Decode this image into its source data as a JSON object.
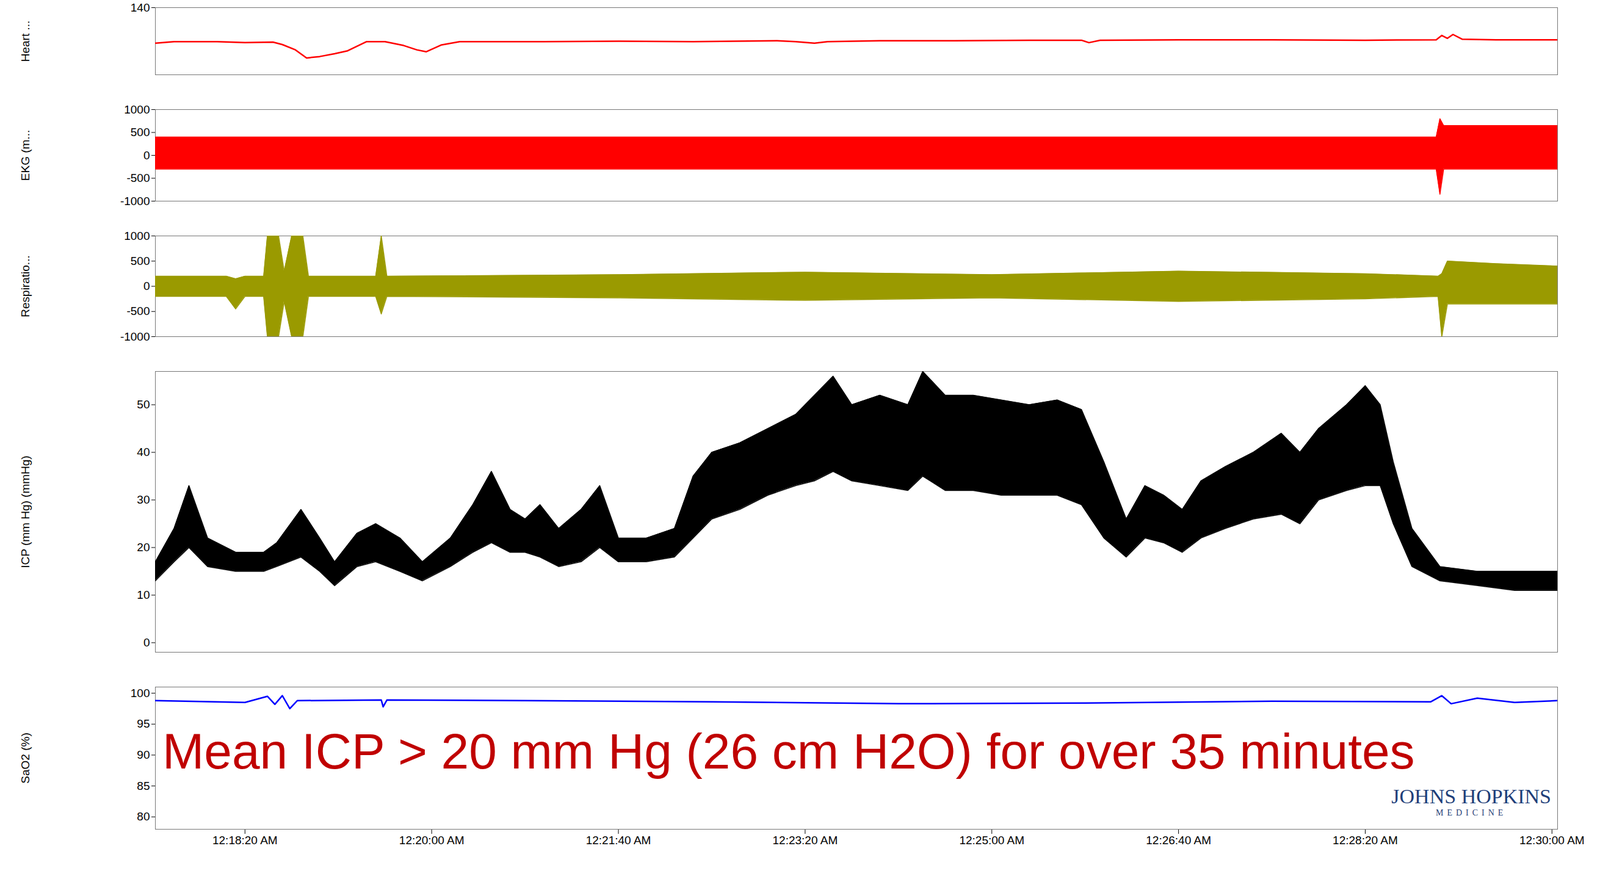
{
  "chart_data": [
    {
      "type": "line",
      "ylabel": "Heart ...",
      "color": "#ff0000",
      "tick_labels": "y",
      "xlim": [
        1052,
        1803
      ],
      "ylim": [
        0,
        140
      ],
      "yticks": [
        140
      ],
      "x": [
        1052,
        1062,
        1085,
        1100,
        1115,
        1120,
        1127,
        1133,
        1140,
        1148,
        1155,
        1165,
        1175,
        1185,
        1192,
        1197,
        1205,
        1215,
        1260,
        1300,
        1340,
        1385,
        1395,
        1405,
        1412,
        1440,
        1480,
        1520,
        1548,
        1552,
        1558,
        1600,
        1650,
        1700,
        1738,
        1741,
        1744,
        1747,
        1752,
        1770,
        1803
      ],
      "values": [
        66,
        69,
        69,
        67,
        68,
        63,
        52,
        35,
        38,
        44,
        50,
        69,
        69,
        61,
        52,
        48,
        62,
        69,
        69,
        70,
        69,
        71,
        69,
        66,
        69,
        71,
        71,
        72,
        72,
        67,
        72,
        73,
        73,
        72,
        73,
        82,
        76,
        84,
        74,
        73,
        73
      ]
    },
    {
      "type": "band",
      "ylabel": "EKG (m...",
      "color": "#ff0000",
      "tick_labels": "y",
      "xlim": [
        1052,
        1803
      ],
      "ylim": [
        -1000,
        1000
      ],
      "yticks": [
        -1000,
        -500,
        0,
        500,
        1000
      ],
      "x": [
        1052,
        1738,
        1740,
        1742,
        1803
      ],
      "low": [
        -300,
        -300,
        -850,
        -300,
        -300
      ],
      "high": [
        400,
        400,
        800,
        650,
        650
      ]
    },
    {
      "type": "band",
      "ylabel": "Respiratio...",
      "color": "#9a9a00",
      "tick_labels": "y",
      "xlim": [
        1052,
        1803
      ],
      "ylim": [
        -1000,
        1000
      ],
      "yticks": [
        -1000,
        -500,
        0,
        500,
        1000
      ],
      "x": [
        1052,
        1090,
        1095,
        1100,
        1110,
        1112,
        1118,
        1121,
        1125,
        1131,
        1134,
        1170,
        1173,
        1176,
        1300,
        1400,
        1500,
        1600,
        1700,
        1739,
        1741,
        1744,
        1770,
        1803
      ],
      "low": [
        -200,
        -200,
        -450,
        -200,
        -200,
        -1000,
        -1000,
        -300,
        -1000,
        -1000,
        -200,
        -200,
        -550,
        -200,
        -230,
        -280,
        -230,
        -300,
        -250,
        -200,
        -1000,
        -350,
        -350,
        -350
      ],
      "high": [
        200,
        200,
        150,
        200,
        200,
        1000,
        1000,
        300,
        1000,
        1000,
        200,
        200,
        1000,
        200,
        230,
        280,
        230,
        300,
        250,
        200,
        250,
        500,
        450,
        400
      ]
    },
    {
      "type": "band",
      "ylabel": "ICP (mm Hg) (mmHg)",
      "color": "#000000",
      "tick_labels": "y",
      "xlim": [
        1052,
        1803
      ],
      "ylim": [
        -2,
        57
      ],
      "yticks": [
        0,
        10,
        20,
        30,
        40,
        50
      ],
      "x": [
        1052,
        1062,
        1070,
        1080,
        1095,
        1110,
        1117,
        1130,
        1140,
        1148,
        1160,
        1170,
        1183,
        1195,
        1210,
        1222,
        1232,
        1242,
        1250,
        1258,
        1268,
        1280,
        1290,
        1300,
        1315,
        1330,
        1340,
        1350,
        1365,
        1380,
        1395,
        1405,
        1415,
        1425,
        1440,
        1455,
        1463,
        1475,
        1490,
        1505,
        1520,
        1535,
        1548,
        1560,
        1572,
        1582,
        1592,
        1602,
        1612,
        1625,
        1640,
        1655,
        1665,
        1675,
        1690,
        1700,
        1708,
        1715,
        1725,
        1740,
        1760,
        1780,
        1803
      ],
      "low": [
        13,
        17,
        20,
        16,
        15,
        15,
        16,
        18,
        15,
        12,
        16,
        17,
        15,
        13,
        16,
        19,
        21,
        19,
        19,
        18,
        16,
        17,
        20,
        17,
        17,
        18,
        22,
        26,
        28,
        31,
        33,
        34,
        36,
        34,
        33,
        32,
        35,
        32,
        32,
        31,
        31,
        31,
        29,
        22,
        18,
        22,
        21,
        19,
        22,
        24,
        26,
        27,
        25,
        30,
        32,
        33,
        33,
        25,
        16,
        13,
        12,
        11,
        11
      ],
      "high": [
        17,
        24,
        33,
        22,
        19,
        19,
        21,
        28,
        22,
        17,
        23,
        25,
        22,
        17,
        22,
        29,
        36,
        28,
        26,
        29,
        24,
        28,
        33,
        22,
        22,
        24,
        35,
        40,
        42,
        45,
        48,
        52,
        56,
        50,
        52,
        50,
        57,
        52,
        52,
        51,
        50,
        51,
        49,
        38,
        26,
        33,
        31,
        28,
        34,
        37,
        40,
        44,
        40,
        45,
        50,
        54,
        50,
        38,
        24,
        16,
        15,
        15,
        15
      ]
    },
    {
      "type": "line",
      "ylabel": "SaO2 (%)",
      "color": "#0000ff",
      "xlim": [
        1052,
        1803
      ],
      "ylim": [
        78,
        101
      ],
      "yticks": [
        80,
        85,
        90,
        95,
        100
      ],
      "xticks": [
        {
          "value": 1100,
          "label": "12:18:20 AM"
        },
        {
          "value": 1200,
          "label": "12:20:00 AM"
        },
        {
          "value": 1300,
          "label": "12:21:40 AM"
        },
        {
          "value": 1400,
          "label": "12:23:20 AM"
        },
        {
          "value": 1500,
          "label": "12:25:00 AM"
        },
        {
          "value": 1600,
          "label": "12:26:40 AM"
        },
        {
          "value": 1700,
          "label": "12:28:20 AM"
        },
        {
          "value": 1800,
          "label": "12:30:00 AM"
        }
      ],
      "x": [
        1052,
        1100,
        1112,
        1116,
        1120,
        1124,
        1128,
        1173,
        1174,
        1176,
        1250,
        1350,
        1450,
        1550,
        1650,
        1735,
        1741,
        1746,
        1760,
        1780,
        1803
      ],
      "values": [
        98.8,
        98.5,
        99.5,
        98.2,
        99.6,
        97.5,
        98.8,
        98.9,
        97.8,
        98.9,
        98.8,
        98.6,
        98.3,
        98.4,
        98.7,
        98.6,
        99.6,
        98.3,
        99.2,
        98.5,
        98.8
      ],
      "annotations": [
        "Mean ICP > 20 mm Hg (26 cm H2O) for over 35 minutes",
        "JOHNS HOPKINS",
        "MEDICINE"
      ]
    }
  ]
}
